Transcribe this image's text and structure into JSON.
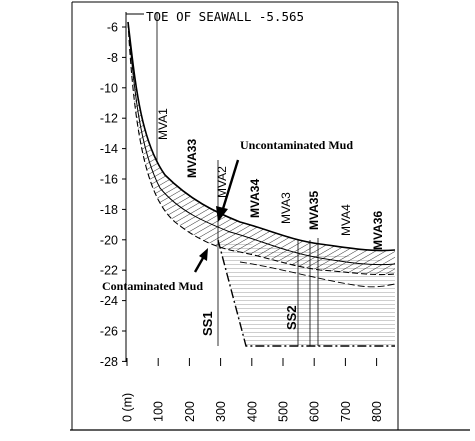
{
  "header_label": "TOE OF SEAWALL -5.565",
  "y_ticks": [
    "-6",
    "-8",
    "-10",
    "-12",
    "-14",
    "-16",
    "-18",
    "-20",
    "-22",
    "-24",
    "-26",
    "-28"
  ],
  "x_ticks": [
    "0 (m)",
    "100",
    "200",
    "300",
    "400",
    "500",
    "600",
    "700",
    "800"
  ],
  "profile_labels": {
    "mva1": "MVA1",
    "mva2": "MVA2",
    "mva3": "MVA3",
    "mva4": "MVA4",
    "mva33": "MVA33",
    "mva34": "MVA34",
    "mva35": "MVA35",
    "mva36": "MVA36",
    "ss1": "SS1",
    "ss2": "SS2"
  },
  "annotations": {
    "uncontaminated": "Uncontaminated Mud",
    "contaminated": "Contaminated Mud"
  },
  "colors": {
    "line": "#000000",
    "background": "#ffffff"
  }
}
